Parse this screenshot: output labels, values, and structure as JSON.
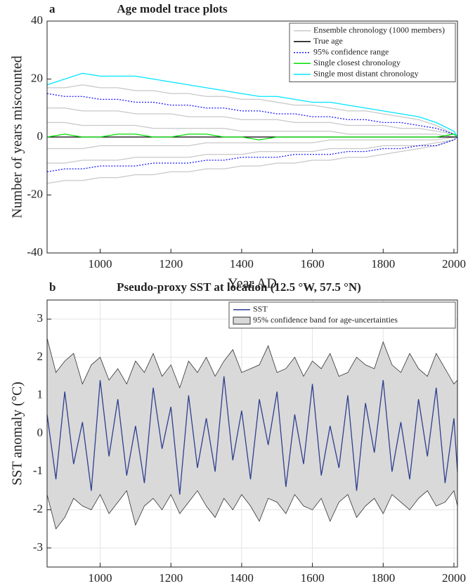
{
  "chart_data": [
    {
      "type": "line",
      "panel_label": "a",
      "title": "Age model trace plots",
      "xlabel": "Year AD",
      "ylabel": "Number of years miscounted",
      "x": [
        850,
        900,
        950,
        1000,
        1050,
        1100,
        1150,
        1200,
        1250,
        1300,
        1350,
        1400,
        1450,
        1500,
        1550,
        1600,
        1650,
        1700,
        1750,
        1800,
        1850,
        1900,
        1950,
        2000,
        2010
      ],
      "xlim": [
        850,
        2010
      ],
      "xticks": [
        1000,
        1200,
        1400,
        1600,
        1800,
        2000
      ],
      "ylim": [
        -40,
        40
      ],
      "yticks": [
        -40,
        -20,
        0,
        20,
        40
      ],
      "grid": false,
      "legend": "upper right",
      "series": [
        {
          "name": "Ensemble chronology (1000 members)",
          "color": "#c8c8c8",
          "linestyle": "solid",
          "lines": [
            [
              17,
              17,
              18,
              17,
              17,
              16,
              16,
              15,
              15,
              14,
              14,
              13,
              13,
              12,
              11,
              11,
              10,
              9,
              9,
              8,
              7,
              6,
              4,
              1,
              0
            ],
            [
              10,
              10,
              9,
              9,
              9,
              8,
              8,
              8,
              7,
              7,
              7,
              6,
              6,
              6,
              5,
              5,
              5,
              4,
              4,
              4,
              3,
              3,
              2,
              1,
              0
            ],
            [
              5,
              5,
              4,
              4,
              4,
              4,
              3,
              3,
              3,
              3,
              3,
              2,
              2,
              2,
              2,
              2,
              2,
              1,
              1,
              1,
              1,
              1,
              1,
              0,
              0
            ],
            [
              -4,
              -4,
              -4,
              -3,
              -3,
              -3,
              -3,
              -3,
              -3,
              -2,
              -2,
              -2,
              -2,
              -2,
              -2,
              -2,
              -1,
              -1,
              -1,
              -1,
              -1,
              -1,
              -1,
              0,
              0
            ],
            [
              -9,
              -9,
              -8,
              -8,
              -8,
              -7,
              -7,
              -7,
              -7,
              -6,
              -6,
              -6,
              -5,
              -5,
              -5,
              -5,
              -4,
              -4,
              -4,
              -3,
              -3,
              -3,
              -2,
              -1,
              0
            ],
            [
              -16,
              -15,
              -15,
              -14,
              -14,
              -13,
              -13,
              -12,
              -12,
              -11,
              -11,
              -10,
              -10,
              -9,
              -9,
              -8,
              -8,
              -7,
              -7,
              -6,
              -5,
              -4,
              -3,
              -1,
              0
            ]
          ]
        },
        {
          "name": "True age",
          "color": "#000000",
          "linestyle": "solid",
          "values": [
            0,
            0,
            0,
            0,
            0,
            0,
            0,
            0,
            0,
            0,
            0,
            0,
            0,
            0,
            0,
            0,
            0,
            0,
            0,
            0,
            0,
            0,
            0,
            0,
            0
          ]
        },
        {
          "name": "95% confidence range",
          "color": "#1a1aff",
          "linestyle": "dotted",
          "lines": [
            [
              15,
              14,
              14,
              13,
              13,
              12,
              12,
              11,
              11,
              10,
              10,
              9,
              9,
              8,
              8,
              7,
              7,
              6,
              6,
              5,
              5,
              4,
              3,
              1,
              0
            ],
            [
              -12,
              -11,
              -11,
              -10,
              -10,
              -10,
              -9,
              -9,
              -9,
              -8,
              -8,
              -7,
              -7,
              -7,
              -6,
              -6,
              -6,
              -5,
              -5,
              -4,
              -4,
              -3,
              -3,
              -1,
              0
            ]
          ]
        },
        {
          "name": "Single closest chronology",
          "color": "#00e000",
          "linestyle": "solid",
          "values": [
            0,
            1,
            0,
            0,
            1,
            1,
            0,
            0,
            1,
            1,
            0,
            0,
            -1,
            0,
            0,
            0,
            0,
            0,
            0,
            0,
            0,
            0,
            0,
            1,
            0
          ]
        },
        {
          "name": "Single most distant chronology",
          "color": "#00e5ff",
          "linestyle": "solid",
          "values": [
            18,
            20,
            22,
            21,
            21,
            21,
            20,
            19,
            18,
            17,
            16,
            15,
            14,
            14,
            13,
            12,
            12,
            11,
            10,
            9,
            8,
            7,
            5,
            2,
            0
          ]
        }
      ]
    },
    {
      "type": "line",
      "panel_label": "b",
      "title": "Pseudo-proxy SST at location (12.5 °W, 57.5 °N)",
      "xlabel": "Year AD",
      "ylabel": "SST anomaly (°C)",
      "x": [
        850,
        875,
        900,
        925,
        950,
        975,
        1000,
        1025,
        1050,
        1075,
        1100,
        1125,
        1150,
        1175,
        1200,
        1225,
        1250,
        1275,
        1300,
        1325,
        1350,
        1375,
        1400,
        1425,
        1450,
        1475,
        1500,
        1525,
        1550,
        1575,
        1600,
        1625,
        1650,
        1675,
        1700,
        1725,
        1750,
        1775,
        1800,
        1825,
        1850,
        1875,
        1900,
        1925,
        1950,
        1975,
        2000,
        2010
      ],
      "xlim": [
        850,
        2010
      ],
      "xticks": [
        1000,
        1200,
        1400,
        1600,
        1800,
        2000
      ],
      "ylim": [
        -3.5,
        3.5
      ],
      "yticks": [
        -3,
        -2,
        -1,
        0,
        1,
        2,
        3
      ],
      "grid": true,
      "legend": "upper right",
      "series": [
        {
          "name": "SST",
          "color": "#2e3f8f",
          "linestyle": "solid",
          "values": [
            0.5,
            -1.2,
            1.1,
            -0.8,
            0.3,
            -1.5,
            1.4,
            -0.6,
            0.9,
            -1.1,
            0.2,
            -1.3,
            1.2,
            -0.4,
            0.7,
            -1.6,
            1.0,
            -0.9,
            0.4,
            -1.0,
            1.5,
            -0.7,
            0.6,
            -1.2,
            0.9,
            -0.3,
            1.1,
            -1.4,
            0.5,
            -0.8,
            1.3,
            -1.1,
            0.2,
            -0.9,
            1.0,
            -1.5,
            0.8,
            -0.5,
            1.4,
            -1.0,
            0.3,
            -1.2,
            0.9,
            -0.6,
            1.2,
            -1.3,
            0.4,
            -1.0
          ]
        },
        {
          "name": "95% confidence band for age-uncertainties",
          "color": "#d9d9d9",
          "linestyle": "band",
          "upper": [
            2.5,
            1.6,
            1.9,
            2.1,
            1.3,
            1.8,
            2.0,
            1.4,
            1.7,
            1.3,
            1.9,
            1.6,
            2.1,
            1.5,
            1.8,
            1.2,
            1.9,
            1.6,
            2.0,
            1.5,
            1.9,
            2.2,
            1.6,
            1.7,
            1.8,
            2.3,
            1.6,
            1.7,
            2.0,
            1.5,
            1.9,
            1.7,
            2.1,
            1.5,
            1.6,
            2.0,
            1.8,
            1.7,
            2.4,
            1.8,
            1.6,
            2.1,
            1.7,
            1.5,
            2.1,
            1.7,
            1.3,
            1.4
          ],
          "lower": [
            -1.6,
            -2.5,
            -2.2,
            -1.7,
            -1.9,
            -2.0,
            -1.6,
            -2.1,
            -1.8,
            -1.5,
            -2.4,
            -1.9,
            -1.7,
            -2.0,
            -1.6,
            -2.1,
            -1.8,
            -1.5,
            -1.9,
            -2.2,
            -1.7,
            -2.0,
            -1.6,
            -1.9,
            -2.3,
            -1.7,
            -1.8,
            -2.1,
            -1.6,
            -1.9,
            -2.0,
            -1.7,
            -2.3,
            -1.8,
            -1.6,
            -2.2,
            -1.9,
            -1.7,
            -2.1,
            -1.6,
            -1.8,
            -2.0,
            -1.7,
            -1.5,
            -1.9,
            -1.8,
            -1.5,
            -1.9
          ]
        }
      ]
    }
  ]
}
